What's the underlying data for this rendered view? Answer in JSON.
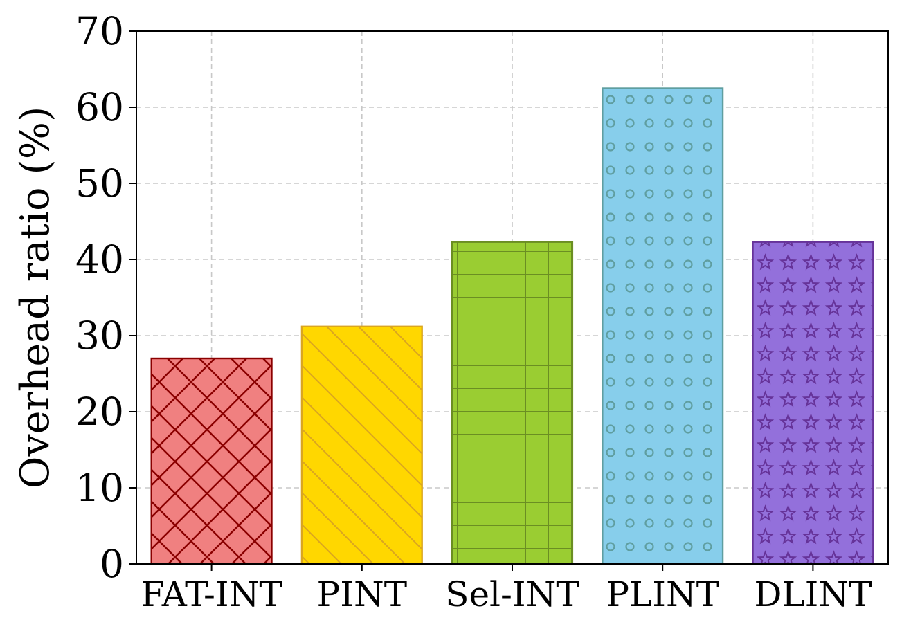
{
  "chart_data": {
    "type": "bar",
    "title": "",
    "xlabel": "",
    "ylabel": "Overhead ratio (%)",
    "categories": [
      "FAT-INT",
      "PINT",
      "Sel-INT",
      "PLINT",
      "DLINT"
    ],
    "values": [
      27.0,
      31.2,
      42.3,
      62.5,
      42.3
    ],
    "ylim": [
      0,
      70
    ],
    "yticks": [
      "0",
      "10",
      "20",
      "30",
      "40",
      "50",
      "60",
      "70"
    ],
    "grid": true,
    "legend": "none",
    "bar_styles": [
      {
        "fill": "#f08080",
        "edge": "#8b0000",
        "pattern": "diagonal-cross"
      },
      {
        "fill": "#ffd700",
        "edge": "#daa520",
        "pattern": "diagonal"
      },
      {
        "fill": "#9acd32",
        "edge": "#6b8e23",
        "pattern": "grid"
      },
      {
        "fill": "#87ceeb",
        "edge": "#5f9ea0",
        "pattern": "circles"
      },
      {
        "fill": "#9370db",
        "edge": "#663399",
        "pattern": "stars"
      }
    ]
  }
}
